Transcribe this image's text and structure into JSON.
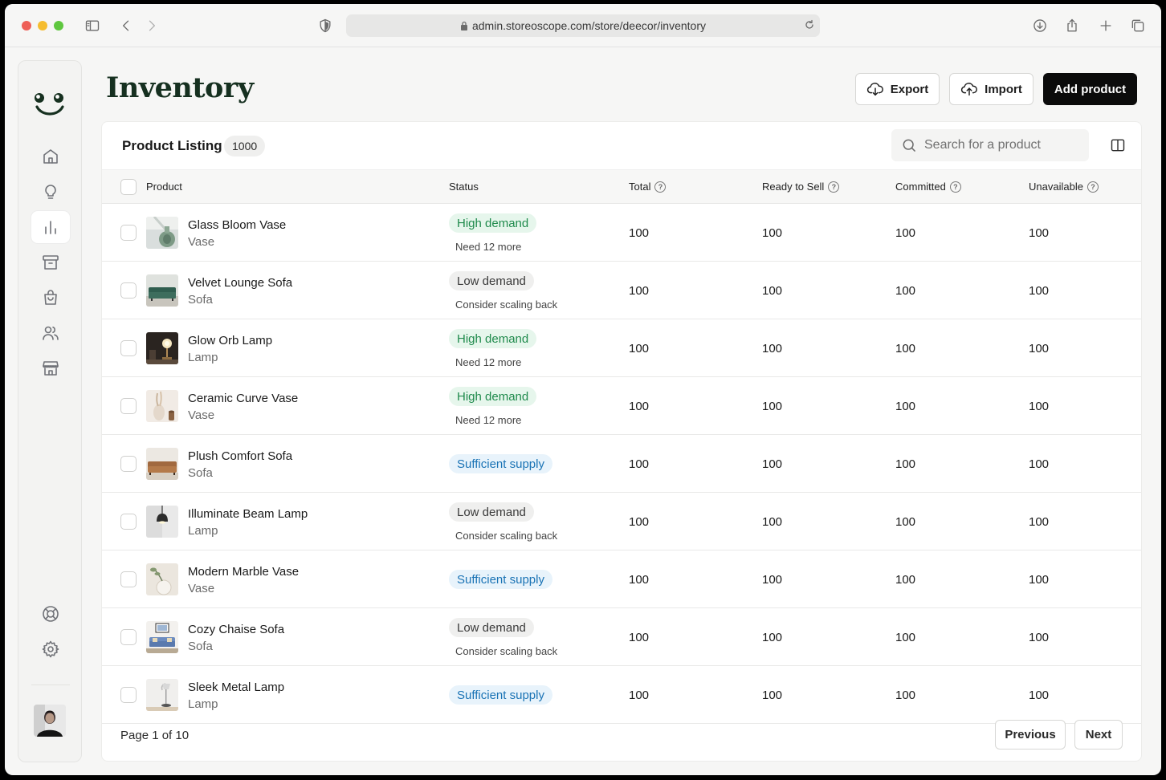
{
  "browser": {
    "url": "admin.storeoscope.com/store/deecor/inventory"
  },
  "sidebar": {
    "items": [
      {
        "name": "home"
      },
      {
        "name": "ideas"
      },
      {
        "name": "analytics",
        "active": true
      },
      {
        "name": "archive"
      },
      {
        "name": "orders"
      },
      {
        "name": "customers"
      },
      {
        "name": "store"
      }
    ],
    "bottom": [
      {
        "name": "help"
      },
      {
        "name": "settings"
      }
    ]
  },
  "header": {
    "title": "Inventory",
    "export_label": "Export",
    "import_label": "Import",
    "add_label": "Add product"
  },
  "listing": {
    "title": "Product Listing",
    "count": "1000",
    "search_placeholder": "Search for a product",
    "columns": {
      "product": "Product",
      "status": "Status",
      "total": "Total",
      "ready": "Ready to Sell",
      "committed": "Committed",
      "unavailable": "Unavailable"
    },
    "rows": [
      {
        "name": "Glass Bloom Vase",
        "category": "Vase",
        "status": "High demand",
        "status_type": "high",
        "note": "Need 12 more",
        "total": "100",
        "ready": "100",
        "committed": "100",
        "unavailable": "100",
        "thumb": "vase-glass"
      },
      {
        "name": "Velvet Lounge Sofa",
        "category": "Sofa",
        "status": "Low demand",
        "status_type": "low",
        "note": "Consider scaling back",
        "total": "100",
        "ready": "100",
        "committed": "100",
        "unavailable": "100",
        "thumb": "sofa-green"
      },
      {
        "name": "Glow Orb Lamp",
        "category": "Lamp",
        "status": "High demand",
        "status_type": "high",
        "note": "Need 12 more",
        "total": "100",
        "ready": "100",
        "committed": "100",
        "unavailable": "100",
        "thumb": "lamp-orb"
      },
      {
        "name": "Ceramic Curve Vase",
        "category": "Vase",
        "status": "High demand",
        "status_type": "high",
        "note": "Need 12 more",
        "total": "100",
        "ready": "100",
        "committed": "100",
        "unavailable": "100",
        "thumb": "vase-ceramic"
      },
      {
        "name": "Plush Comfort Sofa",
        "category": "Sofa",
        "status": "Sufficient supply",
        "status_type": "sufficient",
        "note": "",
        "total": "100",
        "ready": "100",
        "committed": "100",
        "unavailable": "100",
        "thumb": "sofa-brown"
      },
      {
        "name": "Illuminate Beam Lamp",
        "category": "Lamp",
        "status": "Low demand",
        "status_type": "low",
        "note": "Consider scaling back",
        "total": "100",
        "ready": "100",
        "committed": "100",
        "unavailable": "100",
        "thumb": "lamp-pendant"
      },
      {
        "name": "Modern Marble Vase",
        "category": "Vase",
        "status": "Sufficient supply",
        "status_type": "sufficient",
        "note": "",
        "total": "100",
        "ready": "100",
        "committed": "100",
        "unavailable": "100",
        "thumb": "vase-marble"
      },
      {
        "name": "Cozy Chaise Sofa",
        "category": "Sofa",
        "status": "Low demand",
        "status_type": "low",
        "note": "Consider scaling back",
        "total": "100",
        "ready": "100",
        "committed": "100",
        "unavailable": "100",
        "thumb": "sofa-blue"
      },
      {
        "name": "Sleek Metal Lamp",
        "category": "Lamp",
        "status": "Sufficient supply",
        "status_type": "sufficient",
        "note": "",
        "total": "100",
        "ready": "100",
        "committed": "100",
        "unavailable": "100",
        "thumb": "lamp-metal"
      }
    ],
    "pagination": {
      "text": "Page 1 of 10",
      "previous_label": "Previous",
      "next_label": "Next"
    }
  },
  "colors": {
    "brand": "#163020",
    "high_bg": "#e6f6ec",
    "high_fg": "#1f8a4c",
    "low_bg": "#efefee",
    "low_fg": "#3a3a3a",
    "sufficient_bg": "#e8f3fb",
    "sufficient_fg": "#1a73b5"
  }
}
